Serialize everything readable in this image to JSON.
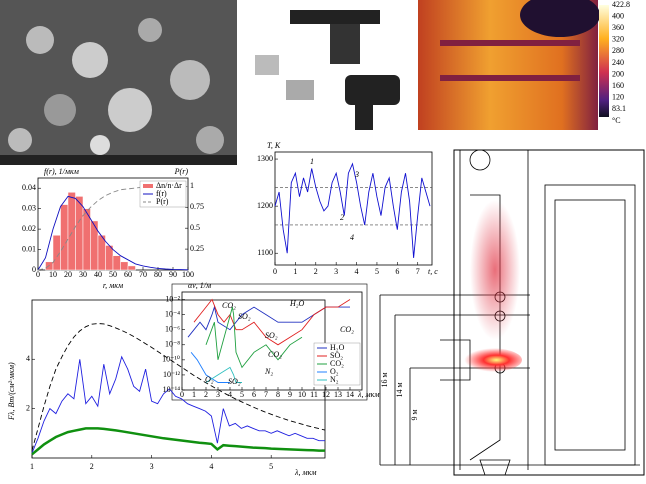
{
  "chart_data": [
    {
      "type": "histogram",
      "title": "f(r), 1/мкм",
      "y2label": "P(r)",
      "xlabel": "r, мкм",
      "name": "Δn/n·Δr",
      "color": "#f07070",
      "bins": [
        5,
        10,
        15,
        20,
        25,
        30,
        35,
        40,
        45,
        50,
        55,
        60,
        65
      ],
      "values": [
        0.004,
        0.017,
        0.032,
        0.038,
        0.036,
        0.03,
        0.024,
        0.017,
        0.012,
        0.007,
        0.004,
        0.002
      ],
      "series": [
        {
          "name": "f(r)",
          "color": "#1010c0",
          "x": [
            0,
            5,
            10,
            15,
            20,
            25,
            30,
            35,
            40,
            45,
            50,
            55,
            60,
            65,
            70,
            75,
            80,
            85,
            90,
            95,
            100
          ],
          "values": [
            0,
            0.006,
            0.02,
            0.031,
            0.036,
            0.035,
            0.031,
            0.025,
            0.019,
            0.014,
            0.01,
            0.007,
            0.005,
            0.003,
            0.002,
            0.0013,
            0.0008,
            0.0005,
            0.0003,
            0.0002,
            0.0001
          ]
        },
        {
          "name": "P(r)",
          "color": "#888888",
          "dashed": true,
          "axis": "y2",
          "x": [
            0,
            5,
            10,
            15,
            20,
            25,
            30,
            35,
            40,
            45,
            50,
            55,
            60,
            65,
            70,
            75,
            80,
            85,
            90,
            95,
            100
          ],
          "values": [
            0,
            0.02,
            0.09,
            0.22,
            0.37,
            0.52,
            0.65,
            0.75,
            0.83,
            0.89,
            0.93,
            0.96,
            0.97,
            0.98,
            0.99,
            0.995,
            0.997,
            0.998,
            0.999,
            1,
            1
          ]
        }
      ],
      "xlim": [
        0,
        100
      ],
      "xticks": [
        0,
        10,
        20,
        30,
        40,
        50,
        60,
        70,
        80,
        90,
        100
      ],
      "ylim": [
        0,
        0.045
      ],
      "yticks": [
        0,
        0.01,
        0.02,
        0.03,
        0.04
      ],
      "y2lim": [
        0,
        1.1
      ],
      "y2ticks": [
        0.25,
        0.5,
        0.75,
        1
      ],
      "legend": "upper right"
    },
    {
      "type": "line",
      "title": "T, K",
      "xlabel": "t, c",
      "x": [
        0,
        0.2,
        0.4,
        0.6,
        0.8,
        1,
        1.2,
        1.4,
        1.6,
        1.8,
        2,
        2.2,
        2.4,
        2.6,
        2.8,
        3,
        3.2,
        3.4,
        3.6,
        3.8,
        4,
        4.2,
        4.4,
        4.6,
        4.8,
        5,
        5.2,
        5.4,
        5.6,
        5.8,
        6,
        6.2,
        6.4,
        6.6,
        6.8,
        7,
        7.2,
        7.4,
        7.6
      ],
      "series": [
        {
          "color": "#1010d0",
          "values": [
            1200,
            1230,
            1150,
            1100,
            1250,
            1270,
            1220,
            1260,
            1230,
            1280,
            1240,
            1210,
            1190,
            1200,
            1250,
            1270,
            1230,
            1180,
            1270,
            1290,
            1250,
            1200,
            1160,
            1230,
            1270,
            1220,
            1180,
            1240,
            1260,
            1200,
            1150,
            1230,
            1270,
            1210,
            1090,
            1180,
            1260,
            1230,
            1200
          ]
        }
      ],
      "reference_lines": [
        1240,
        1160
      ],
      "annotations": [
        "1",
        "2",
        "3",
        "4"
      ],
      "xlim": [
        0,
        7.7
      ],
      "xticks": [
        0,
        1,
        2,
        3,
        4,
        5,
        6,
        7
      ],
      "ylim": [
        1075,
        1315
      ],
      "yticks": [
        1100,
        1200,
        1300
      ]
    },
    {
      "type": "line",
      "title": "αν, 1/м",
      "xlabel": "λ, мкм",
      "log_y": true,
      "series": [
        {
          "name": "H₂O",
          "color": "#2030c0",
          "x": [
            0.5,
            1,
            1.5,
            2,
            2.5,
            2.7,
            3,
            4,
            5,
            6,
            7,
            8,
            9,
            10,
            11,
            12,
            13,
            14
          ],
          "values": [
            1e-07,
            1e-06,
            1e-05,
            1e-06,
            0.0001,
            0.001,
            1e-05,
            1e-06,
            0.0001,
            0.001,
            0.0001,
            1e-05,
            1e-05,
            1e-05,
            0.0001,
            0.001,
            0.001,
            0.001
          ]
        },
        {
          "name": "SO₂",
          "color": "#e02020",
          "x": [
            1,
            1.5,
            2,
            2.5,
            3,
            3.5,
            4,
            4.5,
            5,
            6,
            7,
            8,
            9,
            10,
            11,
            12,
            13,
            14
          ],
          "values": [
            1e-05,
            0.0001,
            0.001,
            0.01,
            0.0001,
            1e-05,
            0.0001,
            1e-06,
            1e-06,
            1e-05,
            1e-07,
            1e-08,
            1e-07,
            1e-06,
            0.0001,
            0.001,
            0.001,
            0.01
          ]
        },
        {
          "name": "CO₂",
          "color": "#20a040",
          "x": [
            2,
            2.7,
            3,
            4.2,
            4.3,
            4.5,
            5,
            6,
            7,
            8,
            9,
            10
          ],
          "values": [
            1e-08,
            1e-05,
            1e-10,
            0.001,
            0.0001,
            1e-09,
            1e-11,
            1e-09,
            1e-08,
            1e-10,
            1e-08,
            1e-07
          ]
        },
        {
          "name": "O₂",
          "color": "#2080ff",
          "x": [
            0.76,
            1.27,
            2,
            3,
            4
          ],
          "values": [
            1e-09,
            1e-10,
            1e-12,
            1e-13,
            1e-13
          ]
        },
        {
          "name": "N₂",
          "color": "#30c0c0",
          "x": [
            2,
            3,
            4,
            4.3,
            4.5,
            5
          ],
          "values": [
            1e-13,
            1e-12,
            1e-11,
            1e-12,
            1e-13,
            1e-13
          ]
        }
      ],
      "annotations": [
        "CO₂",
        "H₂O",
        "SO₂",
        "CO₂",
        "SO₂",
        "O₂",
        "SO₂",
        "N₂",
        "CO₂",
        "SO₂"
      ],
      "xlim": [
        0,
        15
      ],
      "xticks": [
        0,
        1,
        2,
        3,
        4,
        5,
        6,
        7,
        8,
        9,
        10,
        11,
        12,
        13,
        14
      ],
      "ylim": [
        1e-14,
        0.1
      ],
      "yticks": [
        {
          "value": 1e-14,
          "label": "10⁻¹⁴"
        },
        {
          "value": 1e-12,
          "label": "10⁻¹²"
        },
        {
          "value": 1e-10,
          "label": "10⁻¹⁰"
        },
        {
          "value": 1e-08,
          "label": "10⁻⁸"
        },
        {
          "value": 1e-06,
          "label": "10⁻⁶"
        },
        {
          "value": 0.0001,
          "label": "10⁻⁴"
        },
        {
          "value": 0.01,
          "label": "10⁻²"
        }
      ],
      "legend": "lower right"
    },
    {
      "type": "line",
      "title": "Fλ, Вт/(см²·мкм)",
      "xlabel": "λ, мкм",
      "x": [
        1,
        1.1,
        1.2,
        1.3,
        1.4,
        1.5,
        1.6,
        1.7,
        1.8,
        1.9,
        2,
        2.1,
        2.2,
        2.3,
        2.4,
        2.5,
        2.6,
        2.7,
        2.8,
        2.9,
        3,
        3.1,
        3.2,
        3.3,
        3.4,
        3.5,
        3.6,
        3.7,
        3.8,
        3.9,
        4,
        4.1,
        4.2,
        4.3,
        4.4,
        4.5,
        4.6,
        4.7,
        4.8,
        4.9,
        5,
        5.1,
        5.2,
        5.3,
        5.4,
        5.5,
        5.6,
        5.7,
        5.8,
        5.9
      ],
      "series": [
        {
          "color": "#000000",
          "dashed": true,
          "values": [
            0.3,
            1.2,
            2.1,
            2.9,
            3.6,
            4.1,
            4.55,
            4.9,
            5.15,
            5.32,
            5.42,
            5.45,
            5.43,
            5.36,
            5.27,
            5.17,
            5.05,
            4.92,
            4.78,
            4.63,
            4.48,
            4.32,
            4.16,
            4,
            3.84,
            3.68,
            3.52,
            3.36,
            3.21,
            3.06,
            2.92,
            2.78,
            2.65,
            2.52,
            2.4,
            2.28,
            2.17,
            2.06,
            1.96,
            1.86,
            1.77,
            1.68,
            1.6,
            1.52,
            1.45,
            1.38,
            1.31,
            1.25,
            1.19,
            1.13
          ]
        },
        {
          "color": "#2020e0",
          "values": [
            0.2,
            0.8,
            1.5,
            2,
            1.8,
            2.3,
            2.6,
            2.4,
            4,
            2.2,
            2.5,
            2.1,
            3.8,
            2.6,
            3.2,
            4.1,
            3.6,
            2.9,
            2.7,
            3.6,
            2.3,
            2.2,
            2.6,
            2.8,
            2.5,
            2.4,
            2.2,
            2.1,
            2,
            1.9,
            1.7,
            0.6,
            2,
            1.3,
            1.4,
            1.2,
            1.3,
            1.2,
            1.1,
            1.1,
            1,
            1.1,
            1,
            0.9,
            1,
            0.9,
            0.8,
            0.8,
            0.7,
            0.7
          ]
        },
        {
          "color": "#109010",
          "width": 2.5,
          "values": [
            0.15,
            0.35,
            0.55,
            0.7,
            0.85,
            0.95,
            1.05,
            1.1,
            1.15,
            1.2,
            1.2,
            1.2,
            1.18,
            1.15,
            1.12,
            1.08,
            1.04,
            1,
            0.96,
            0.92,
            0.88,
            0.84,
            0.8,
            0.77,
            0.74,
            0.71,
            0.68,
            0.65,
            0.62,
            0.6,
            0.57,
            0.35,
            0.52,
            0.5,
            0.48,
            0.46,
            0.44,
            0.42,
            0.41,
            0.4,
            0.38,
            0.37,
            0.36,
            0.35,
            0.34,
            0.33,
            0.32,
            0.31,
            0.3,
            0.3
          ]
        }
      ],
      "xlim": [
        1,
        5.9
      ],
      "xticks": [
        1,
        2,
        3,
        4,
        5
      ],
      "ylim": [
        0,
        6.4
      ],
      "yticks": [
        2,
        4
      ]
    }
  ],
  "thermal_scale": {
    "labels": [
      "422.8",
      "400",
      "360",
      "320",
      "280",
      "240",
      "200",
      "160",
      "120",
      "83.1",
      "°C"
    ]
  },
  "boiler": {
    "labels": [
      "16 м",
      "14 м",
      "9 м"
    ]
  }
}
